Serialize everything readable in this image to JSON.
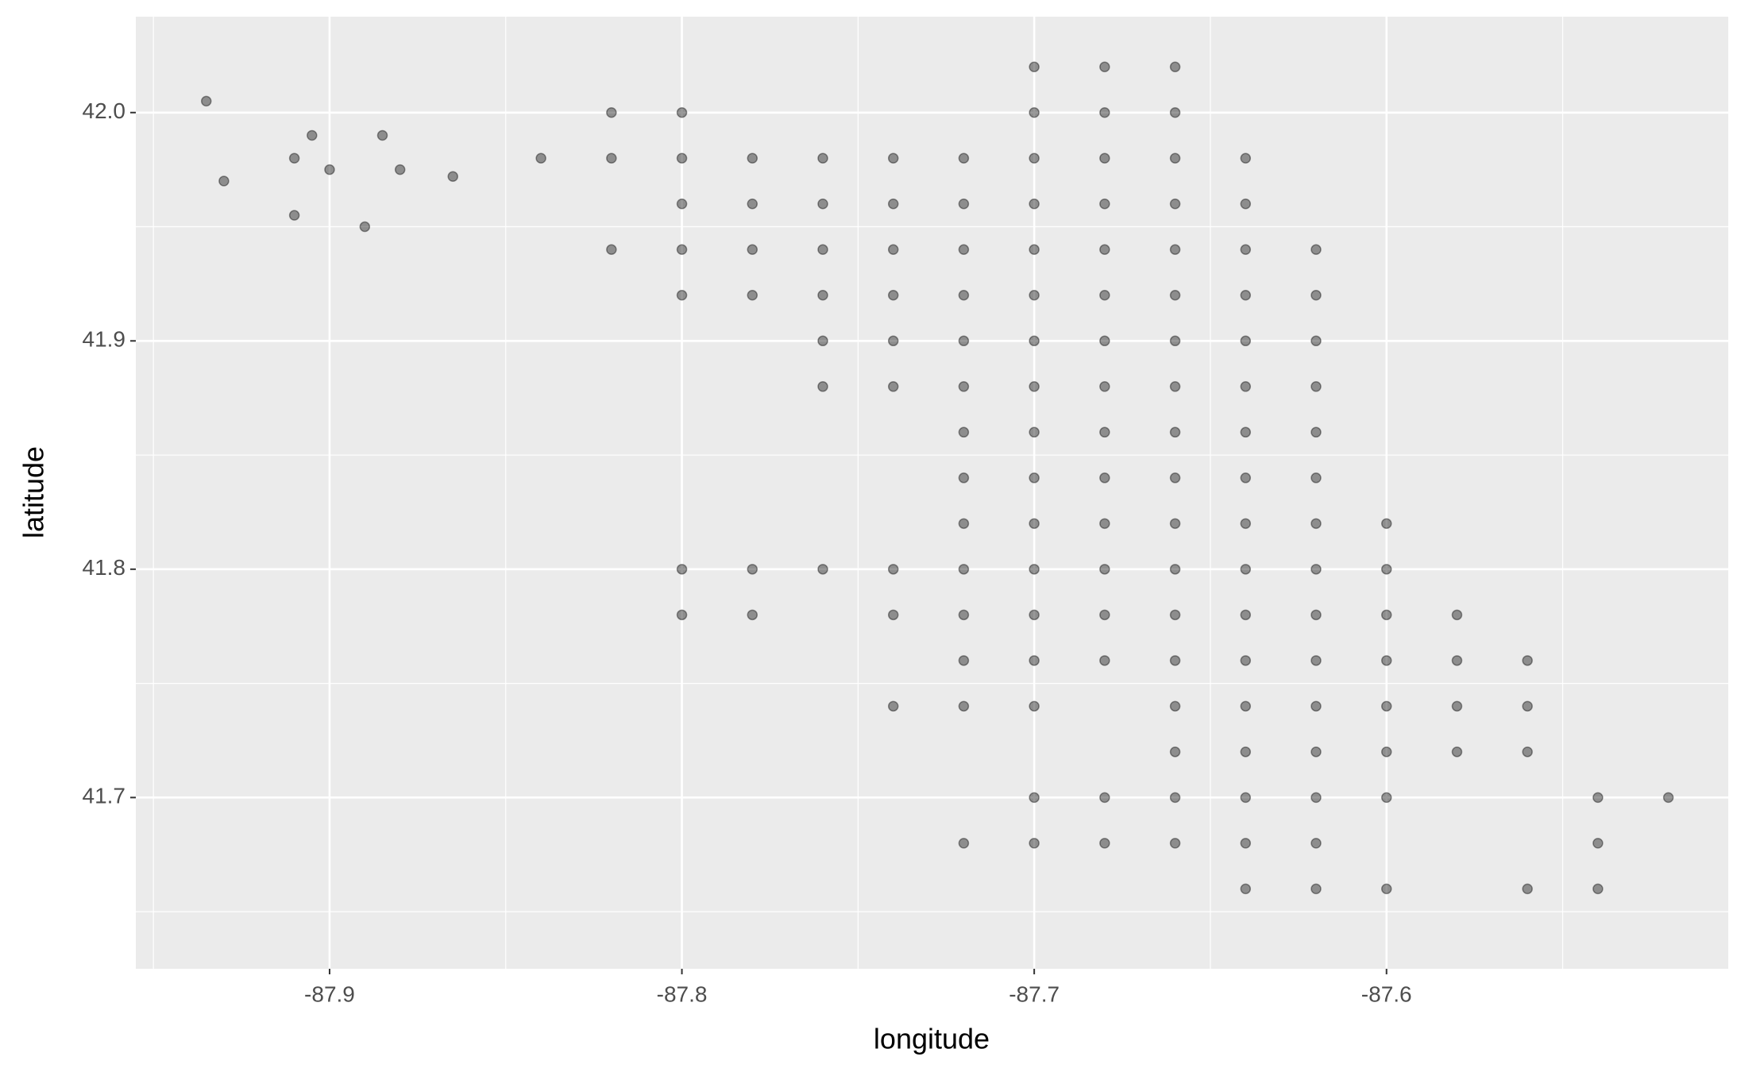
{
  "chart_data": {
    "type": "scatter",
    "x_label": "longitude",
    "y_label": "latitude",
    "xlim": [
      -87.955,
      -87.503
    ],
    "ylim": [
      41.625,
      42.042
    ],
    "xticks": [
      {
        "value": -87.9,
        "label": "-87.9"
      },
      {
        "value": -87.8,
        "label": "-87.8"
      },
      {
        "value": -87.7,
        "label": "-87.7"
      },
      {
        "value": -87.6,
        "label": "-87.6"
      }
    ],
    "yticks": [
      {
        "value": 41.7,
        "label": "41.7"
      },
      {
        "value": 41.8,
        "label": "41.8"
      },
      {
        "value": 41.9,
        "label": "41.9"
      },
      {
        "value": 42.0,
        "label": "42.0"
      }
    ],
    "grid": true,
    "minor_grid": true,
    "color": "#000000",
    "alpha": 0.4,
    "x": [
      -87.7,
      -87.68,
      -87.66,
      -87.82,
      -87.8,
      -87.7,
      -87.68,
      -87.66,
      -87.84,
      -87.82,
      -87.8,
      -87.78,
      -87.76,
      -87.74,
      -87.72,
      -87.7,
      -87.68,
      -87.66,
      -87.64,
      -87.8,
      -87.78,
      -87.76,
      -87.74,
      -87.72,
      -87.7,
      -87.68,
      -87.66,
      -87.64,
      -87.82,
      -87.8,
      -87.78,
      -87.76,
      -87.74,
      -87.72,
      -87.7,
      -87.68,
      -87.66,
      -87.64,
      -87.62,
      -87.8,
      -87.78,
      -87.76,
      -87.74,
      -87.72,
      -87.7,
      -87.68,
      -87.66,
      -87.64,
      -87.62,
      -87.76,
      -87.74,
      -87.72,
      -87.7,
      -87.68,
      -87.66,
      -87.64,
      -87.62,
      -87.76,
      -87.74,
      -87.72,
      -87.7,
      -87.68,
      -87.66,
      -87.64,
      -87.62,
      -87.72,
      -87.7,
      -87.68,
      -87.66,
      -87.64,
      -87.62,
      -87.72,
      -87.7,
      -87.68,
      -87.66,
      -87.64,
      -87.62,
      -87.72,
      -87.7,
      -87.68,
      -87.66,
      -87.64,
      -87.62,
      -87.6,
      -87.8,
      -87.78,
      -87.76,
      -87.74,
      -87.72,
      -87.7,
      -87.68,
      -87.66,
      -87.64,
      -87.62,
      -87.6,
      -87.8,
      -87.78,
      -87.74,
      -87.72,
      -87.7,
      -87.68,
      -87.66,
      -87.64,
      -87.62,
      -87.6,
      -87.58,
      -87.72,
      -87.7,
      -87.68,
      -87.66,
      -87.64,
      -87.62,
      -87.6,
      -87.58,
      -87.56,
      -87.74,
      -87.72,
      -87.7,
      -87.66,
      -87.64,
      -87.62,
      -87.6,
      -87.58,
      -87.56,
      -87.66,
      -87.64,
      -87.62,
      -87.6,
      -87.58,
      -87.56,
      -87.7,
      -87.68,
      -87.66,
      -87.64,
      -87.62,
      -87.6,
      -87.54,
      -87.52,
      -87.72,
      -87.7,
      -87.68,
      -87.66,
      -87.64,
      -87.62,
      -87.54,
      -87.64,
      -87.62,
      -87.6,
      -87.56,
      -87.54,
      -87.935,
      -87.9,
      -87.91,
      -87.88,
      -87.885,
      -87.91,
      -87.89,
      -87.865,
      -87.905,
      -87.93
    ],
    "values": [
      42.02,
      42.02,
      42.02,
      42.0,
      42.0,
      42.0,
      42.0,
      42.0,
      41.98,
      41.98,
      41.98,
      41.98,
      41.98,
      41.98,
      41.98,
      41.98,
      41.98,
      41.98,
      41.98,
      41.96,
      41.96,
      41.96,
      41.96,
      41.96,
      41.96,
      41.96,
      41.96,
      41.96,
      41.94,
      41.94,
      41.94,
      41.94,
      41.94,
      41.94,
      41.94,
      41.94,
      41.94,
      41.94,
      41.94,
      41.92,
      41.92,
      41.92,
      41.92,
      41.92,
      41.92,
      41.92,
      41.92,
      41.92,
      41.92,
      41.9,
      41.9,
      41.9,
      41.9,
      41.9,
      41.9,
      41.9,
      41.9,
      41.88,
      41.88,
      41.88,
      41.88,
      41.88,
      41.88,
      41.88,
      41.88,
      41.86,
      41.86,
      41.86,
      41.86,
      41.86,
      41.86,
      41.84,
      41.84,
      41.84,
      41.84,
      41.84,
      41.84,
      41.82,
      41.82,
      41.82,
      41.82,
      41.82,
      41.82,
      41.82,
      41.8,
      41.8,
      41.8,
      41.8,
      41.8,
      41.8,
      41.8,
      41.8,
      41.8,
      41.8,
      41.8,
      41.78,
      41.78,
      41.78,
      41.78,
      41.78,
      41.78,
      41.78,
      41.78,
      41.78,
      41.78,
      41.78,
      41.76,
      41.76,
      41.76,
      41.76,
      41.76,
      41.76,
      41.76,
      41.76,
      41.76,
      41.74,
      41.74,
      41.74,
      41.74,
      41.74,
      41.74,
      41.74,
      41.74,
      41.74,
      41.72,
      41.72,
      41.72,
      41.72,
      41.72,
      41.72,
      41.7,
      41.7,
      41.7,
      41.7,
      41.7,
      41.7,
      41.7,
      41.7,
      41.68,
      41.68,
      41.68,
      41.68,
      41.68,
      41.68,
      41.68,
      41.66,
      41.66,
      41.66,
      41.66,
      41.66,
      42.005,
      41.975,
      41.98,
      41.975,
      41.99,
      41.955,
      41.95,
      41.972,
      41.99,
      41.97
    ]
  }
}
